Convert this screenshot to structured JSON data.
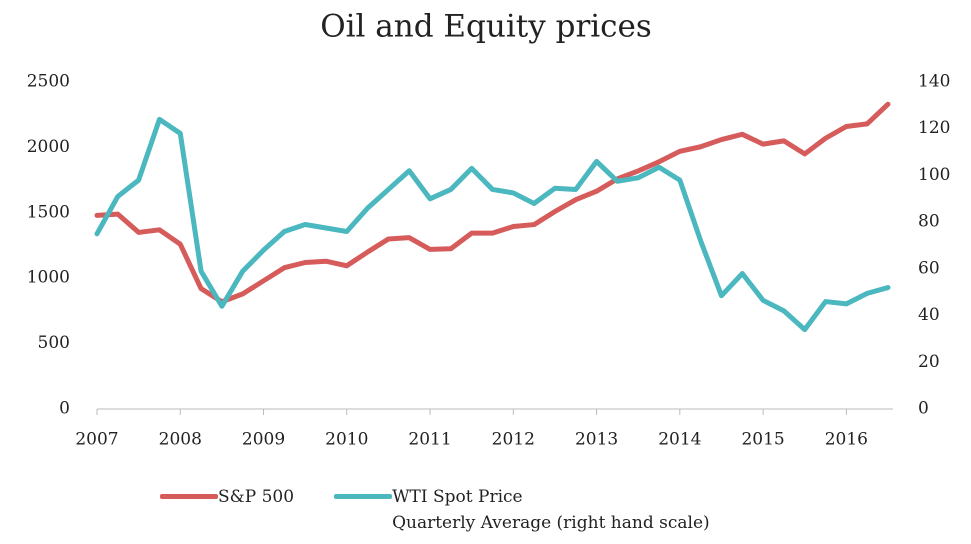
{
  "chart_data": {
    "type": "line",
    "title": "Oil and Equity prices",
    "x": [
      2007,
      2007.25,
      2007.5,
      2007.75,
      2008,
      2008.25,
      2008.5,
      2008.75,
      2009,
      2009.25,
      2009.5,
      2009.75,
      2010,
      2010.25,
      2010.5,
      2010.75,
      2011,
      2011.25,
      2011.5,
      2011.75,
      2012,
      2012.25,
      2012.5,
      2012.75,
      2013,
      2013.25,
      2013.5,
      2013.75,
      2014,
      2014.25,
      2014.5,
      2014.75,
      2015,
      2015.25,
      2015.5,
      2015.75,
      2016,
      2016.25,
      2016.5
    ],
    "series": [
      {
        "name": "S&P 500",
        "color": "#d65b5b",
        "values": [
          1480,
          1490,
          1350,
          1370,
          1260,
          920,
          820,
          880,
          980,
          1080,
          1120,
          1130,
          1095,
          1200,
          1300,
          1310,
          1220,
          1225,
          1345,
          1345,
          1395,
          1410,
          1510,
          1600,
          1665,
          1760,
          1820,
          1890,
          1970,
          2005,
          2060,
          2100,
          2025,
          2050,
          1950,
          2070,
          2160,
          2180,
          2330
        ]
      },
      {
        "name": "WTI Spot Price\nQuarterly Average (right hand scale)",
        "color": "#4bb7bf",
        "axis": "y2",
        "values": [
          75,
          91,
          98,
          124,
          118,
          59,
          44,
          59,
          68,
          76,
          79,
          77.5,
          76,
          86,
          94,
          102,
          90,
          94,
          103,
          94,
          92.5,
          88,
          94.5,
          94,
          106,
          97.5,
          99,
          103.5,
          98,
          72,
          48.5,
          58,
          46.5,
          42,
          34,
          46,
          45,
          49.5,
          52
        ]
      }
    ],
    "xlim": [
      2007,
      2016.5
    ],
    "xticks": [
      2007,
      2008,
      2009,
      2010,
      2011,
      2012,
      2013,
      2014,
      2015,
      2016
    ],
    "ylim": [
      0,
      2500
    ],
    "yticks": [
      0,
      500,
      1000,
      1500,
      2000,
      2500
    ],
    "y2lim": [
      0,
      140
    ],
    "y2ticks": [
      0,
      20,
      40,
      60,
      80,
      100,
      120,
      140
    ],
    "grid": false,
    "legend": "bottom"
  }
}
